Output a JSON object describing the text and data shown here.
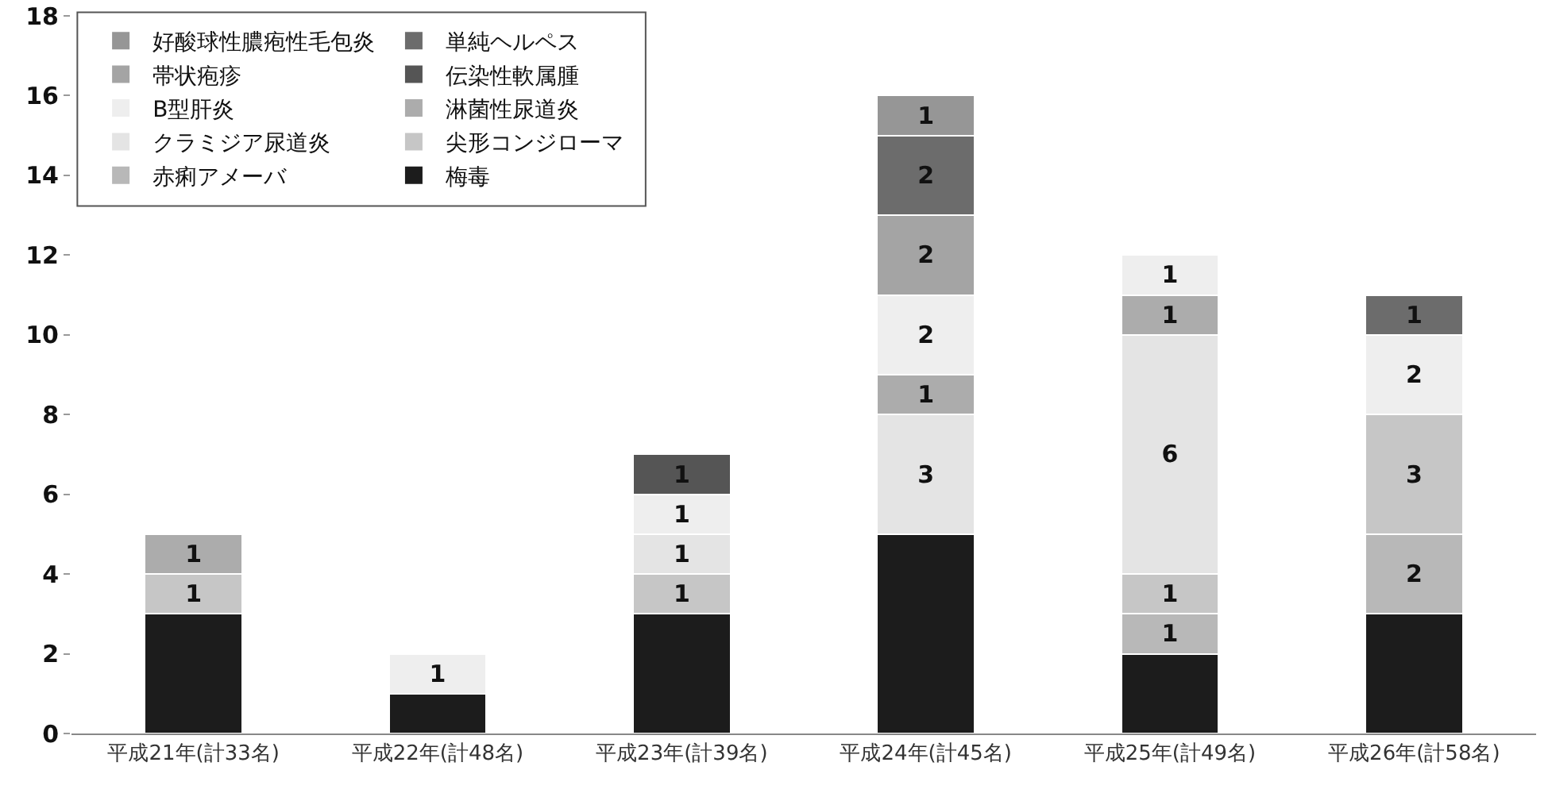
{
  "chart_data": {
    "type": "bar",
    "stacked": true,
    "categories": [
      "平成21年(計33名)",
      "平成22年(計48名)",
      "平成23年(計39名)",
      "平成24年(計45名)",
      "平成25年(計49名)",
      "平成26年(計58名)"
    ],
    "ylim": [
      0,
      18
    ],
    "yticks": [
      0,
      2,
      4,
      6,
      8,
      10,
      12,
      14,
      16,
      18
    ],
    "grid": false,
    "legend": "top left",
    "series": [
      {
        "name": "梅毒",
        "color": "#1c1c1c",
        "values": [
          3,
          1,
          3,
          5,
          2,
          3
        ],
        "value_labels": [
          null,
          null,
          null,
          null,
          null,
          null
        ]
      },
      {
        "name": "赤痢アメーバ",
        "color": "#b8b8b8",
        "values": [
          null,
          null,
          null,
          null,
          1,
          2
        ],
        "value_labels": [
          null,
          null,
          null,
          null,
          "1",
          "2"
        ]
      },
      {
        "name": "尖形コンジローマ",
        "color": "#c6c6c6",
        "values": [
          1,
          null,
          1,
          null,
          1,
          3
        ],
        "value_labels": [
          "1",
          null,
          "1",
          null,
          "1",
          "3"
        ]
      },
      {
        "name": "クラミジア尿道炎",
        "color": "#e4e4e4",
        "values": [
          null,
          null,
          1,
          3,
          6,
          null
        ],
        "value_labels": [
          null,
          null,
          "1",
          "3",
          "6",
          null
        ]
      },
      {
        "name": "淋菌性尿道炎",
        "color": "#acacac",
        "values": [
          1,
          null,
          null,
          1,
          1,
          null
        ],
        "value_labels": [
          "1",
          null,
          null,
          "1",
          "1",
          null
        ]
      },
      {
        "name": "B型肝炎",
        "color": "#eeeeee",
        "values": [
          null,
          1,
          1,
          2,
          1,
          2
        ],
        "value_labels": [
          null,
          "1",
          "1",
          "2",
          "1",
          "2"
        ]
      },
      {
        "name": "伝染性軟属腫",
        "color": "#555555",
        "values": [
          null,
          null,
          1,
          null,
          null,
          null
        ],
        "value_labels": [
          null,
          null,
          "1",
          null,
          null,
          null
        ]
      },
      {
        "name": "帯状疱疹",
        "color": "#a4a4a4",
        "values": [
          null,
          null,
          null,
          2,
          null,
          null
        ],
        "value_labels": [
          null,
          null,
          null,
          "2",
          null,
          null
        ]
      },
      {
        "name": "単純ヘルペス",
        "color": "#6c6c6c",
        "values": [
          null,
          null,
          null,
          2,
          null,
          1
        ],
        "value_labels": [
          null,
          null,
          null,
          "2",
          null,
          "1"
        ]
      },
      {
        "name": "好酸球性膿疱性毛包炎",
        "color": "#969696",
        "values": [
          null,
          null,
          null,
          1,
          null,
          null
        ],
        "value_labels": [
          null,
          null,
          null,
          "1",
          null,
          null
        ]
      }
    ]
  }
}
